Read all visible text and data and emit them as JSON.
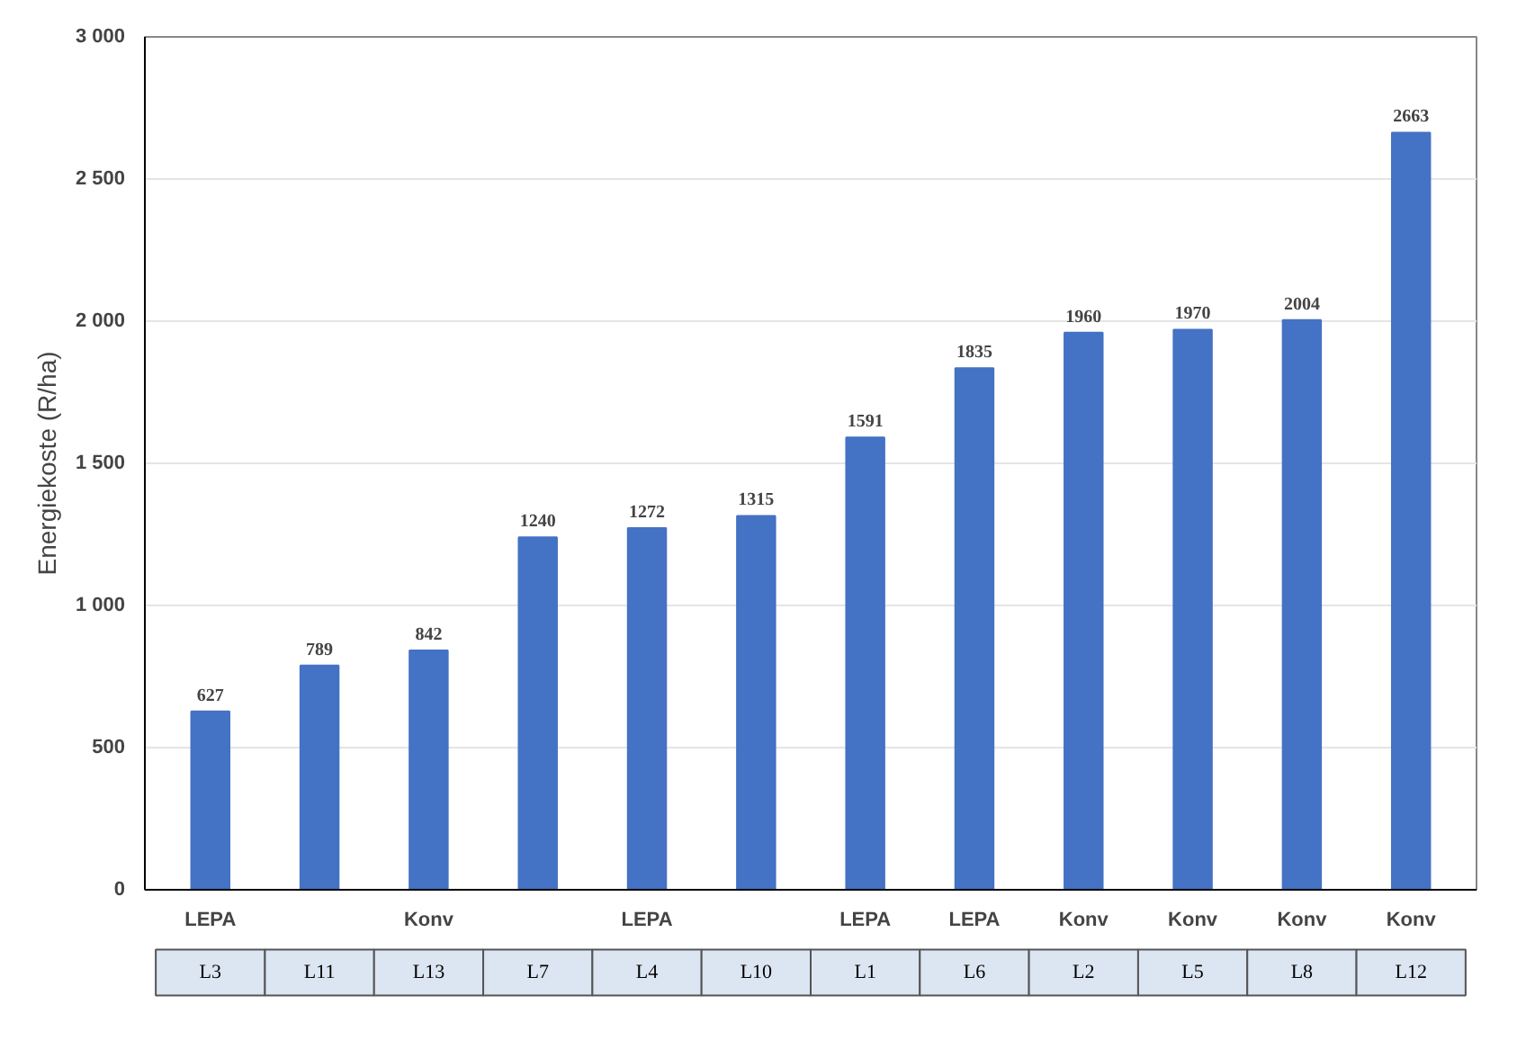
{
  "chart_data": {
    "type": "bar",
    "ylabel": "Energiekoste (R/ha)",
    "categories": [
      "LEPA",
      null,
      "Konv",
      null,
      "LEPA",
      null,
      "LEPA",
      "LEPA",
      "Konv",
      "Konv",
      "Konv",
      "Konv"
    ],
    "values": [
      627,
      789,
      842,
      1240,
      1272,
      1315,
      1591,
      1835,
      1960,
      1970,
      2004,
      2663
    ],
    "color": "#4472c4",
    "data_labels": true,
    "grid": "y",
    "ylim": [
      0,
      3000
    ],
    "yticks": [
      0,
      500,
      {
        "value": 1000,
        "label": "1 000"
      },
      {
        "value": 1500,
        "label": "1 500"
      },
      {
        "value": 2000,
        "label": "2 000"
      },
      {
        "value": 2500,
        "label": "2 500"
      },
      {
        "value": 3000,
        "label": "3 000"
      }
    ],
    "annotations": [
      "L3",
      "L11",
      "L13",
      "L7",
      "L4",
      "L10",
      "L1",
      "L6",
      "L2",
      "L5",
      "L8",
      "L12"
    ]
  }
}
